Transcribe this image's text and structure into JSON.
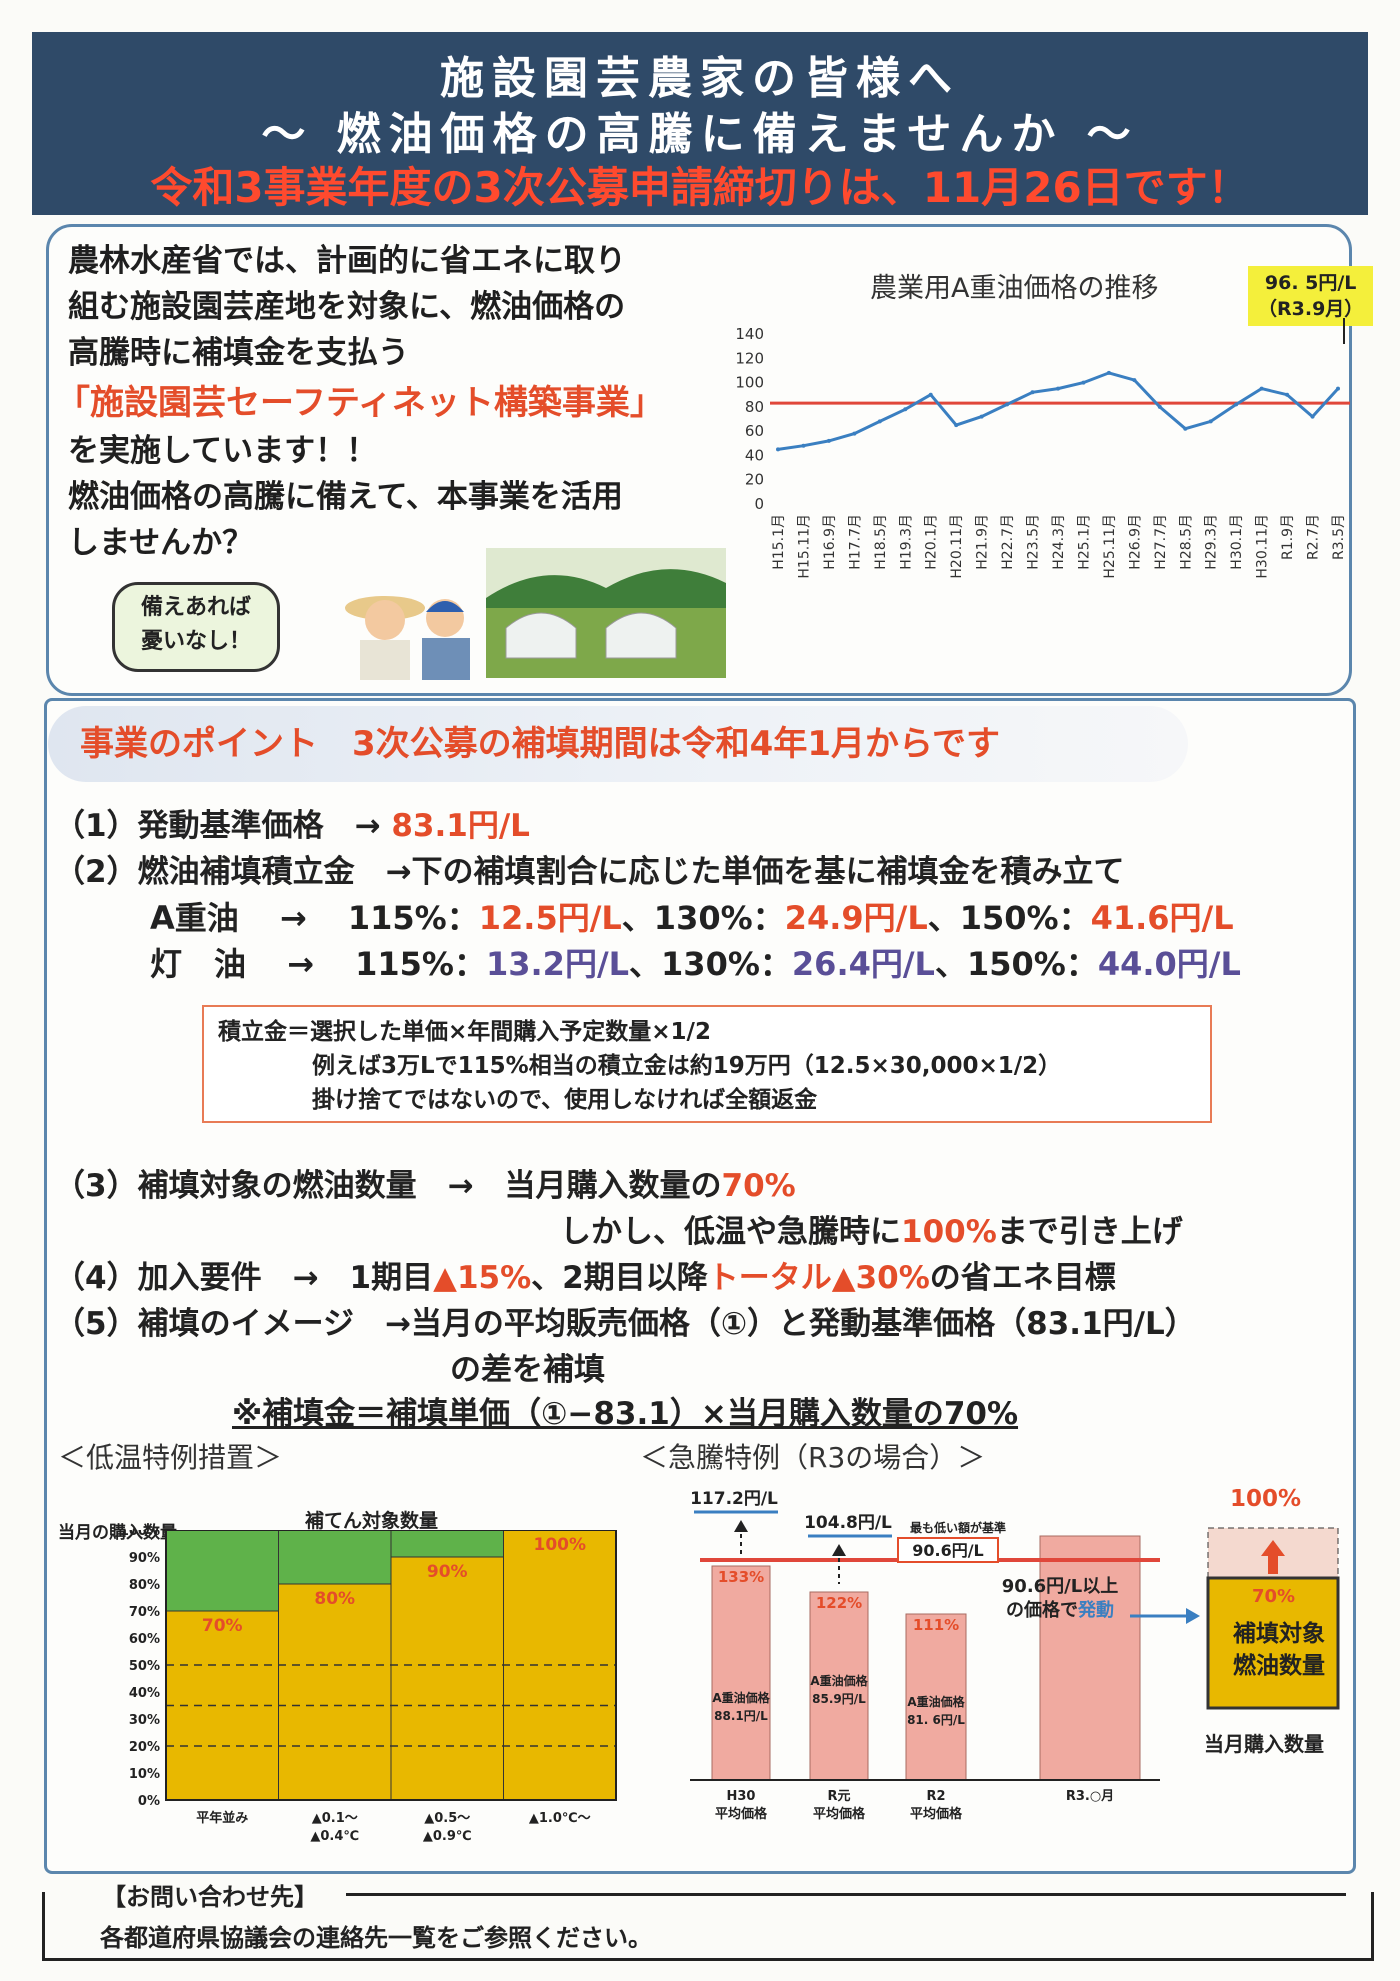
{
  "header": {
    "line1": "施設園芸農家の皆様へ",
    "line2": "〜 燃油価格の高騰に備えませんか 〜",
    "line3": "令和3事業年度の3次公募申請締切りは、11月26日です！"
  },
  "intro": {
    "p1": "農林水産省では、計画的に省エネに取り",
    "p2": "組む施設園芸産地を対象に、燃油価格の",
    "p3": "高騰時に補填金を支払う",
    "project": "「施設園芸セーフティネット構築事業」",
    "p4": "を実施しています！！",
    "p5": "燃油価格の高騰に備えて、本事業を活用",
    "p6": "しませんか？",
    "bubble1": "備えあれば",
    "bubble2": "憂いなし！"
  },
  "chart_data": [
    {
      "type": "line",
      "title": "農業用A重油価格の推移",
      "annotation": [
        "96. 5円/L",
        "（R3.9月）"
      ],
      "categories": [
        "H15.1月",
        "H15.11月",
        "H16.9月",
        "H17.7月",
        "H18.5月",
        "H19.3月",
        "H20.1月",
        "H20.11月",
        "H21.9月",
        "H22.7月",
        "H23.5月",
        "H24.3月",
        "H25.1月",
        "H25.11月",
        "H26.9月",
        "H27.7月",
        "H28.5月",
        "H29.3月",
        "H30.1月",
        "H30.11月",
        "R1.9月",
        "R2.7月",
        "R3.5月"
      ],
      "series": [
        {
          "values": [
            45,
            48,
            52,
            58,
            68,
            78,
            90,
            65,
            72,
            82,
            92,
            95,
            100,
            108,
            102,
            80,
            62,
            68,
            82,
            95,
            90,
            72,
            95
          ]
        }
      ],
      "reference_line": 83.1,
      "ylim": [
        0,
        140
      ],
      "yticks": [
        0,
        20,
        40,
        60,
        80,
        100,
        120,
        140
      ],
      "colors": {
        "line": "#3a7fc1",
        "reference": "#e0473a"
      }
    },
    {
      "type": "bar",
      "title": "＜低温特例措置＞",
      "ylabel": "当月の購入数量",
      "header": "補てん対象数量",
      "categories": [
        "平年並み",
        "▲0.1〜\n▲0.4℃",
        "▲0.5〜\n▲0.9℃",
        "▲1.0℃〜"
      ],
      "values": [
        70,
        80,
        90,
        100
      ],
      "ylim": [
        0,
        100
      ],
      "yticks": [
        "0%",
        "10%",
        "20%",
        "30%",
        "40%",
        "50%",
        "60%",
        "70%",
        "80%",
        "90%",
        "100%"
      ],
      "colors": {
        "covered": "#e8b800",
        "uncovered": "#5fb24a"
      }
    },
    {
      "type": "bar",
      "title": "＜急騰特例（R3の場合）＞",
      "categories": [
        "H30\n平均価格",
        "R元\n平均価格",
        "R2\n平均価格",
        "R3.○月"
      ],
      "values": [
        88.1,
        85.9,
        81.6,
        null
      ],
      "bar_labels": [
        "A重油価格\n88.1円/L",
        "A重油価格\n85.9円/L",
        "A重油価格\n81. 6円/L",
        ""
      ],
      "percent_labels": [
        "133%",
        "122%",
        "111%"
      ],
      "top_prices": [
        "117.2円/L",
        "104.8円/L",
        "90.6円/L"
      ],
      "lowest_note": "最も低い額が基準",
      "trigger_note": [
        "90.6円/L以上",
        "の価格で",
        "発動"
      ],
      "colors": {
        "bar": "#f0aaa0",
        "line": "#e0473a"
      }
    }
  ],
  "points": {
    "title": "事業のポイント　3次公募の補填期間は令和4年1月からです",
    "item1": {
      "label": "（1）発動基準価格　→",
      "value": "83.1円/L"
    },
    "item2": {
      "label": "（2）燃油補填積立金　→下の補填割合に応じた単価を基に補填金を積み立て"
    },
    "a_oil": {
      "name": "A重油",
      "arrow": "→",
      "p115": "115%：",
      "v115": "12.5円/L",
      "p130": "、130%：",
      "v130": "24.9円/L",
      "p150": "、150%：",
      "v150": "41.6円/L"
    },
    "kerosene": {
      "name": "灯　油",
      "arrow": "→",
      "p115": "115%：",
      "v115": "13.2円/L",
      "p130": "、130%：",
      "v130": "26.4円/L",
      "p150": "、150%：",
      "v150": "44.0円/L"
    },
    "box1": "積立金＝選択した単価×年間購入予定数量×1/2",
    "box2": "例えば3万Lで115%相当の積立金は約19万円（12.5×30,000×1/2）",
    "box3": "掛け捨てではないので、使用しなければ全額返金",
    "item3": {
      "label": "（3）補填対象の燃油数量　→　当月購入数量の",
      "value": "70%"
    },
    "item3b": {
      "pre": "しかし、低温や急騰時に",
      "value": "100%",
      "post": "まで引き上げ"
    },
    "item4": {
      "label": "（4）加入要件　→　1期目",
      "v1": "▲15%",
      "mid": "、2期目以降",
      "v2": "トータル▲30%",
      "post": "の省エネ目標"
    },
    "item5": {
      "label": "（5）補填のイメージ　→当月の平均販売価格（①）と発動基準価格（83.1円/L）"
    },
    "item5b": "の差を補填",
    "item5c": "※補填金＝補填単価（①−83.1）×当月購入数量の70%"
  },
  "right_panel": {
    "top": "100%",
    "mid": "70%",
    "label1": "補填対象",
    "label2": "燃油数量",
    "bottom": "当月購入数量"
  },
  "footer": {
    "title": "【お問い合わせ先】",
    "text": "各都道府県協議会の連絡先一覧をご参照ください。"
  }
}
